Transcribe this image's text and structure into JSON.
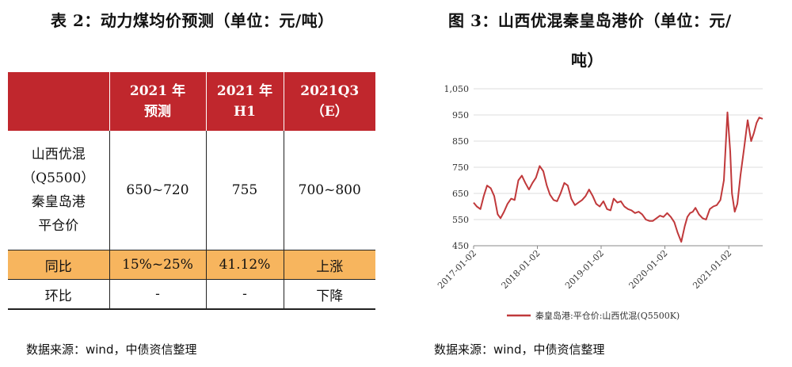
{
  "left": {
    "title": "表 2：动力煤均价预测（单位：元/吨）",
    "table": {
      "headers": [
        {
          "line1": "",
          "line2": ""
        },
        {
          "line1": "2021 年",
          "line2": "预测"
        },
        {
          "line1": "2021 年",
          "line2": "H1"
        },
        {
          "line1": "2021Q3",
          "line2": "（E）"
        }
      ],
      "row_label_lines": [
        "山西优混",
        "（Q5500）",
        "秦皇岛港",
        "平仓价"
      ],
      "row_values": [
        "650~720",
        "755",
        "700~800"
      ],
      "yoy": [
        "同比",
        "15%~25%",
        "41.12%",
        "上涨"
      ],
      "qoq": [
        "环比",
        "-",
        "-",
        "下降"
      ],
      "header_color": "#c0272d",
      "yoy_color": "#f7b55e"
    },
    "source": "数据来源：wind，中债资信整理"
  },
  "right": {
    "title_line1": "图 3：山西优混秦皇岛港价（单位：元/",
    "title_line2": "吨）",
    "source": "数据来源：wind，中债资信整理"
  },
  "chart_data": {
    "type": "line",
    "title": "图 3：山西优混秦皇岛港价（单位：元/吨）",
    "ylim": [
      450,
      1050
    ],
    "yticks": [
      "1,050",
      "950",
      "850",
      "750",
      "650",
      "550",
      "450"
    ],
    "xticks": [
      "2017-01-02",
      "2018-01-02",
      "2019-01-02",
      "2020-01-02",
      "2021-01-02"
    ],
    "grid": true,
    "legend_position": "bottom",
    "line_color": "#c0393b",
    "series": [
      {
        "name": "秦皇岛港:平仓价:山西优混(Q5500K)",
        "x": [
          "2017-01-02",
          "2017-01-20",
          "2017-02-10",
          "2017-03-01",
          "2017-03-20",
          "2017-04-10",
          "2017-04-30",
          "2017-05-20",
          "2017-06-05",
          "2017-06-25",
          "2017-07-15",
          "2017-08-05",
          "2017-08-25",
          "2017-09-15",
          "2017-10-05",
          "2017-10-25",
          "2017-11-15",
          "2017-12-05",
          "2017-12-25",
          "2018-01-15",
          "2018-02-05",
          "2018-02-25",
          "2018-03-15",
          "2018-04-05",
          "2018-04-25",
          "2018-05-15",
          "2018-06-05",
          "2018-06-25",
          "2018-07-15",
          "2018-08-05",
          "2018-08-25",
          "2018-09-15",
          "2018-10-05",
          "2018-10-25",
          "2018-11-15",
          "2018-12-05",
          "2018-12-25",
          "2019-01-15",
          "2019-02-05",
          "2019-02-25",
          "2019-03-15",
          "2019-04-05",
          "2019-04-25",
          "2019-05-15",
          "2019-06-05",
          "2019-06-25",
          "2019-07-15",
          "2019-08-05",
          "2019-08-25",
          "2019-09-15",
          "2019-10-05",
          "2019-10-25",
          "2019-11-15",
          "2019-12-05",
          "2019-12-25",
          "2020-01-15",
          "2020-02-05",
          "2020-02-25",
          "2020-03-15",
          "2020-04-05",
          "2020-04-25",
          "2020-05-10",
          "2020-05-25",
          "2020-06-10",
          "2020-06-25",
          "2020-07-15",
          "2020-08-05",
          "2020-08-25",
          "2020-09-15",
          "2020-10-05",
          "2020-10-25",
          "2020-11-15",
          "2020-12-05",
          "2020-12-25",
          "2021-01-10",
          "2021-01-20",
          "2021-02-05",
          "2021-02-20",
          "2021-03-10",
          "2021-03-30",
          "2021-04-20",
          "2021-05-10",
          "2021-05-25",
          "2021-06-10",
          "2021-06-25",
          "2021-07-15"
        ],
        "values": [
          615,
          600,
          590,
          640,
          680,
          670,
          640,
          570,
          555,
          580,
          610,
          630,
          625,
          700,
          718,
          690,
          665,
          690,
          710,
          755,
          735,
          680,
          645,
          625,
          620,
          650,
          690,
          680,
          630,
          605,
          615,
          625,
          640,
          665,
          640,
          610,
          600,
          620,
          590,
          585,
          630,
          615,
          620,
          600,
          590,
          585,
          575,
          580,
          570,
          550,
          545,
          545,
          555,
          565,
          560,
          575,
          560,
          540,
          500,
          465,
          525,
          560,
          575,
          580,
          595,
          570,
          555,
          550,
          590,
          600,
          605,
          625,
          700,
          960,
          810,
          650,
          580,
          610,
          720,
          820,
          930,
          850,
          880,
          920,
          940,
          935
        ]
      }
    ]
  }
}
